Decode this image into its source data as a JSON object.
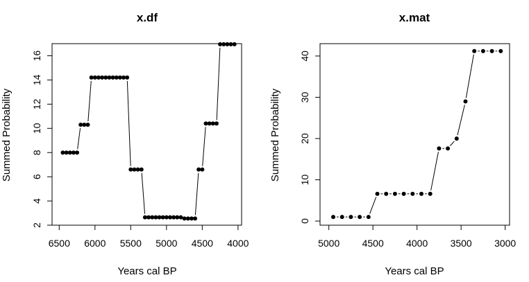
{
  "chart_data": [
    {
      "type": "line",
      "title": "x.df",
      "xlabel": "Years cal BP",
      "ylabel": "Summed Probability",
      "xlim": [
        6600,
        3950
      ],
      "ylim": [
        2,
        17
      ],
      "x_ticks": [
        6500,
        6000,
        5500,
        5000,
        4500,
        4000
      ],
      "y_ticks": [
        2,
        4,
        6,
        8,
        10,
        12,
        14,
        16
      ],
      "grid": false,
      "series": [
        {
          "x": [
            6450,
            6400,
            6350,
            6300,
            6250,
            6200,
            6150,
            6100,
            6050,
            6000,
            5950,
            5900,
            5850,
            5800,
            5750,
            5700,
            5650,
            5600,
            5550,
            5500,
            5450,
            5400,
            5350,
            5300,
            5250,
            5200,
            5150,
            5100,
            5050,
            5000,
            4950,
            4900,
            4850,
            4800,
            4750,
            4700,
            4650,
            4600,
            4550,
            4500,
            4450,
            4400,
            4350,
            4300,
            4250,
            4200,
            4150,
            4100,
            4050
          ],
          "values": [
            8,
            8,
            8,
            8,
            8,
            10.3,
            10.3,
            10.3,
            14.2,
            14.2,
            14.2,
            14.2,
            14.2,
            14.2,
            14.2,
            14.2,
            14.2,
            14.2,
            14.2,
            6.6,
            6.6,
            6.6,
            6.6,
            2.65,
            2.65,
            2.65,
            2.65,
            2.65,
            2.65,
            2.65,
            2.65,
            2.65,
            2.65,
            2.65,
            2.55,
            2.55,
            2.55,
            2.55,
            6.6,
            6.6,
            10.4,
            10.4,
            10.4,
            10.4,
            16.95,
            16.95,
            16.95,
            16.95,
            16.95
          ]
        }
      ]
    },
    {
      "type": "line",
      "title": "x.mat",
      "xlabel": "Years cal BP",
      "ylabel": "Summed Probability",
      "xlim": [
        5100,
        2950
      ],
      "ylim": [
        -1,
        43
      ],
      "x_ticks": [
        5000,
        4500,
        4000,
        3500,
        3000
      ],
      "y_ticks": [
        0,
        10,
        20,
        30,
        40
      ],
      "grid": false,
      "series": [
        {
          "x": [
            4950,
            4850,
            4750,
            4650,
            4550,
            4450,
            4350,
            4250,
            4150,
            4050,
            3950,
            3850,
            3750,
            3650,
            3550,
            3450,
            3350,
            3250,
            3150,
            3050
          ],
          "values": [
            1,
            1,
            1,
            1,
            1,
            6.6,
            6.6,
            6.6,
            6.6,
            6.6,
            6.6,
            6.6,
            17.6,
            17.6,
            20,
            29,
            41.2,
            41.2,
            41.2,
            41.2
          ]
        }
      ]
    }
  ]
}
